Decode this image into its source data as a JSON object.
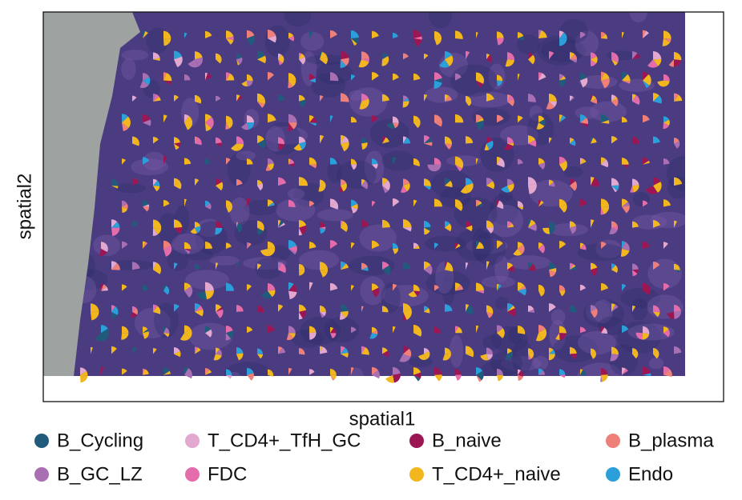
{
  "chart_data": {
    "type": "scatter",
    "xlabel": "spatial1",
    "ylabel": "spatial2",
    "legend": "bottom",
    "series": [
      {
        "name": "B_Cycling",
        "color": "#215b7c"
      },
      {
        "name": "B_GC_LZ",
        "color": "#a86fb2"
      },
      {
        "name": "T_CD4+_TfH_GC",
        "color": "#e2a8cf"
      },
      {
        "name": "FDC",
        "color": "#e46cab"
      },
      {
        "name": "B_naive",
        "color": "#9c1654"
      },
      {
        "name": "T_CD4+_naive",
        "color": "#f2b71f"
      },
      {
        "name": "B_plasma",
        "color": "#ef7f79"
      },
      {
        "name": "Endo",
        "color": "#2b9fd9"
      }
    ]
  }
}
